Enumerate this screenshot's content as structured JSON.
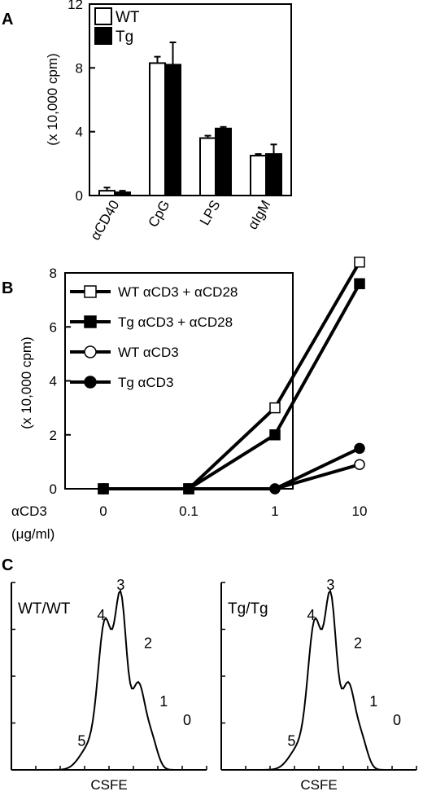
{
  "panels": [
    "A",
    "B",
    "C"
  ],
  "chart_data": [
    {
      "type": "bar",
      "panel": "A",
      "ylabel": "(x 10,000 cpm)",
      "ylim": [
        0,
        12
      ],
      "yticks": [
        "0",
        "4",
        "8",
        "12"
      ],
      "categories": [
        "αCD40",
        "CpG",
        "LPS",
        "αIgM"
      ],
      "series": [
        {
          "name": "WT",
          "fill": "#ffffff",
          "values": [
            0.3,
            8.3,
            3.6,
            2.5
          ],
          "errors": [
            0.2,
            0.4,
            0.15,
            0.1
          ]
        },
        {
          "name": "Tg",
          "fill": "#000000",
          "values": [
            0.2,
            8.2,
            4.2,
            2.6
          ],
          "errors": [
            0.1,
            1.4,
            0.1,
            0.6
          ]
        }
      ],
      "legend": "top-left"
    },
    {
      "type": "line",
      "panel": "B",
      "ylabel": "(x 10,000 cpm)",
      "ylim": [
        0,
        8
      ],
      "yticks": [
        "0",
        "2",
        "4",
        "6",
        "8"
      ],
      "xlabel": "αCD3",
      "xunit": "(μg/ml)",
      "x": [
        "0",
        "0.1",
        "1",
        "10"
      ],
      "series": [
        {
          "name": "WT αCD3 + αCD28",
          "marker": "square-open",
          "values": [
            0,
            0,
            3.0,
            8.4
          ]
        },
        {
          "name": "Tg  αCD3 + αCD28",
          "marker": "square-filled",
          "values": [
            0,
            0,
            2.0,
            7.6
          ]
        },
        {
          "name": "WT αCD3",
          "marker": "circle-open",
          "values": [
            0,
            0,
            0,
            0.9
          ]
        },
        {
          "name": "Tg  αCD3",
          "marker": "circle-filled",
          "values": [
            0,
            0,
            0,
            1.5
          ]
        }
      ],
      "legend": "top-left"
    },
    {
      "type": "line",
      "panel": "C",
      "histograms": [
        {
          "label": "WT/WT",
          "xlabel": "CSFE",
          "peak_labels": [
            "5",
            "4",
            "3",
            "2",
            "1",
            "0"
          ]
        },
        {
          "label": "Tg/Tg",
          "xlabel": "CSFE",
          "peak_labels": [
            "5",
            "4",
            "3",
            "2",
            "1",
            "0"
          ]
        }
      ]
    }
  ]
}
